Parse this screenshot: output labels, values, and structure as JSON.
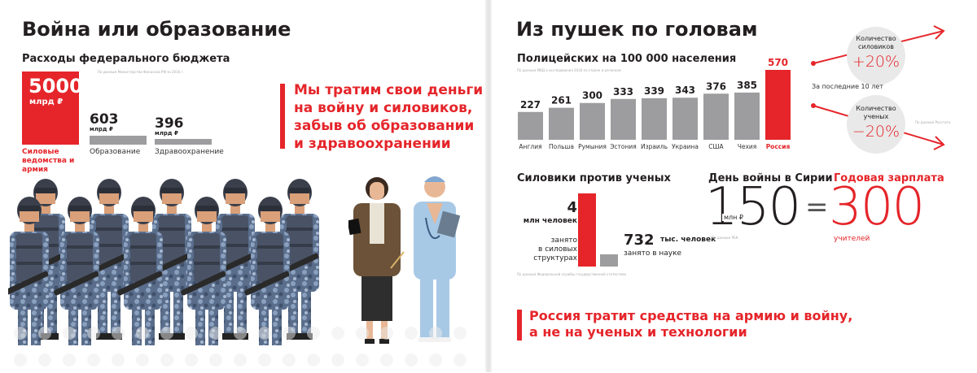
{
  "left": {
    "title": "Война или образование",
    "budget_title": "Расходы федерального бюджета",
    "budget_source": "По данным Министерства Финансов РФ за 2016 г.",
    "items": [
      {
        "value": "5000",
        "unit": "млрд ₽",
        "label": "Силовые ведомства и армия"
      },
      {
        "value": "603",
        "unit": "млрд ₽",
        "label": "Образование"
      },
      {
        "value": "396",
        "unit": "млрд ₽",
        "label": "Здравоохранение"
      }
    ],
    "quote": [
      "Мы тратим свои деньги",
      "на войну и силовиков,",
      "забыв об образовании",
      "и здравоохранении"
    ]
  },
  "right": {
    "title": "Из пушек по головам",
    "police_title": "Полицейских на 100 000 населения",
    "police_source": "По данным МВД и исследования 2018 по стране и регионам",
    "police_chart": {
      "type": "bar",
      "categories": [
        "Англия",
        "Польша",
        "Румыния",
        "Эстония",
        "Израиль",
        "Украина",
        "США",
        "Чехия",
        "Россия"
      ],
      "values": [
        227,
        261,
        300,
        333,
        339,
        343,
        376,
        385,
        570
      ],
      "highlight": "Россия",
      "colors": {
        "normal": "#9d9d9f",
        "highlight": "#e5252a"
      }
    },
    "circles": [
      {
        "line1": "Количество",
        "line2": "силовиков",
        "change": "+20%"
      },
      {
        "line1": "Количество",
        "line2": "ученых",
        "change": "−20%"
      }
    ],
    "decade": "За последние 10 лет",
    "circle_source": "По данным Росстата",
    "vs_title": "Силовики против ученых",
    "security": {
      "value": "4",
      "unit": "млн человек",
      "line3": "занято",
      "line4": "в силовых",
      "line5": "структурах"
    },
    "science": {
      "value": "732",
      "unit": "тыс. человек",
      "line2": "занято в науке"
    },
    "vs_source": "По данным Федеральной службы государственной статистики",
    "syria_title": "День войны в Сирии",
    "syria_value": "150",
    "syria_unit": "млн ₽",
    "syria_source": "По данным РБК",
    "equals": "=",
    "salary_title": "Годовая зарплата",
    "salary_value": "300",
    "salary_unit": "учителей",
    "bottom_quote": [
      "Россия тратит средства на армию и войну,",
      "а не на ученых и технологии"
    ]
  }
}
